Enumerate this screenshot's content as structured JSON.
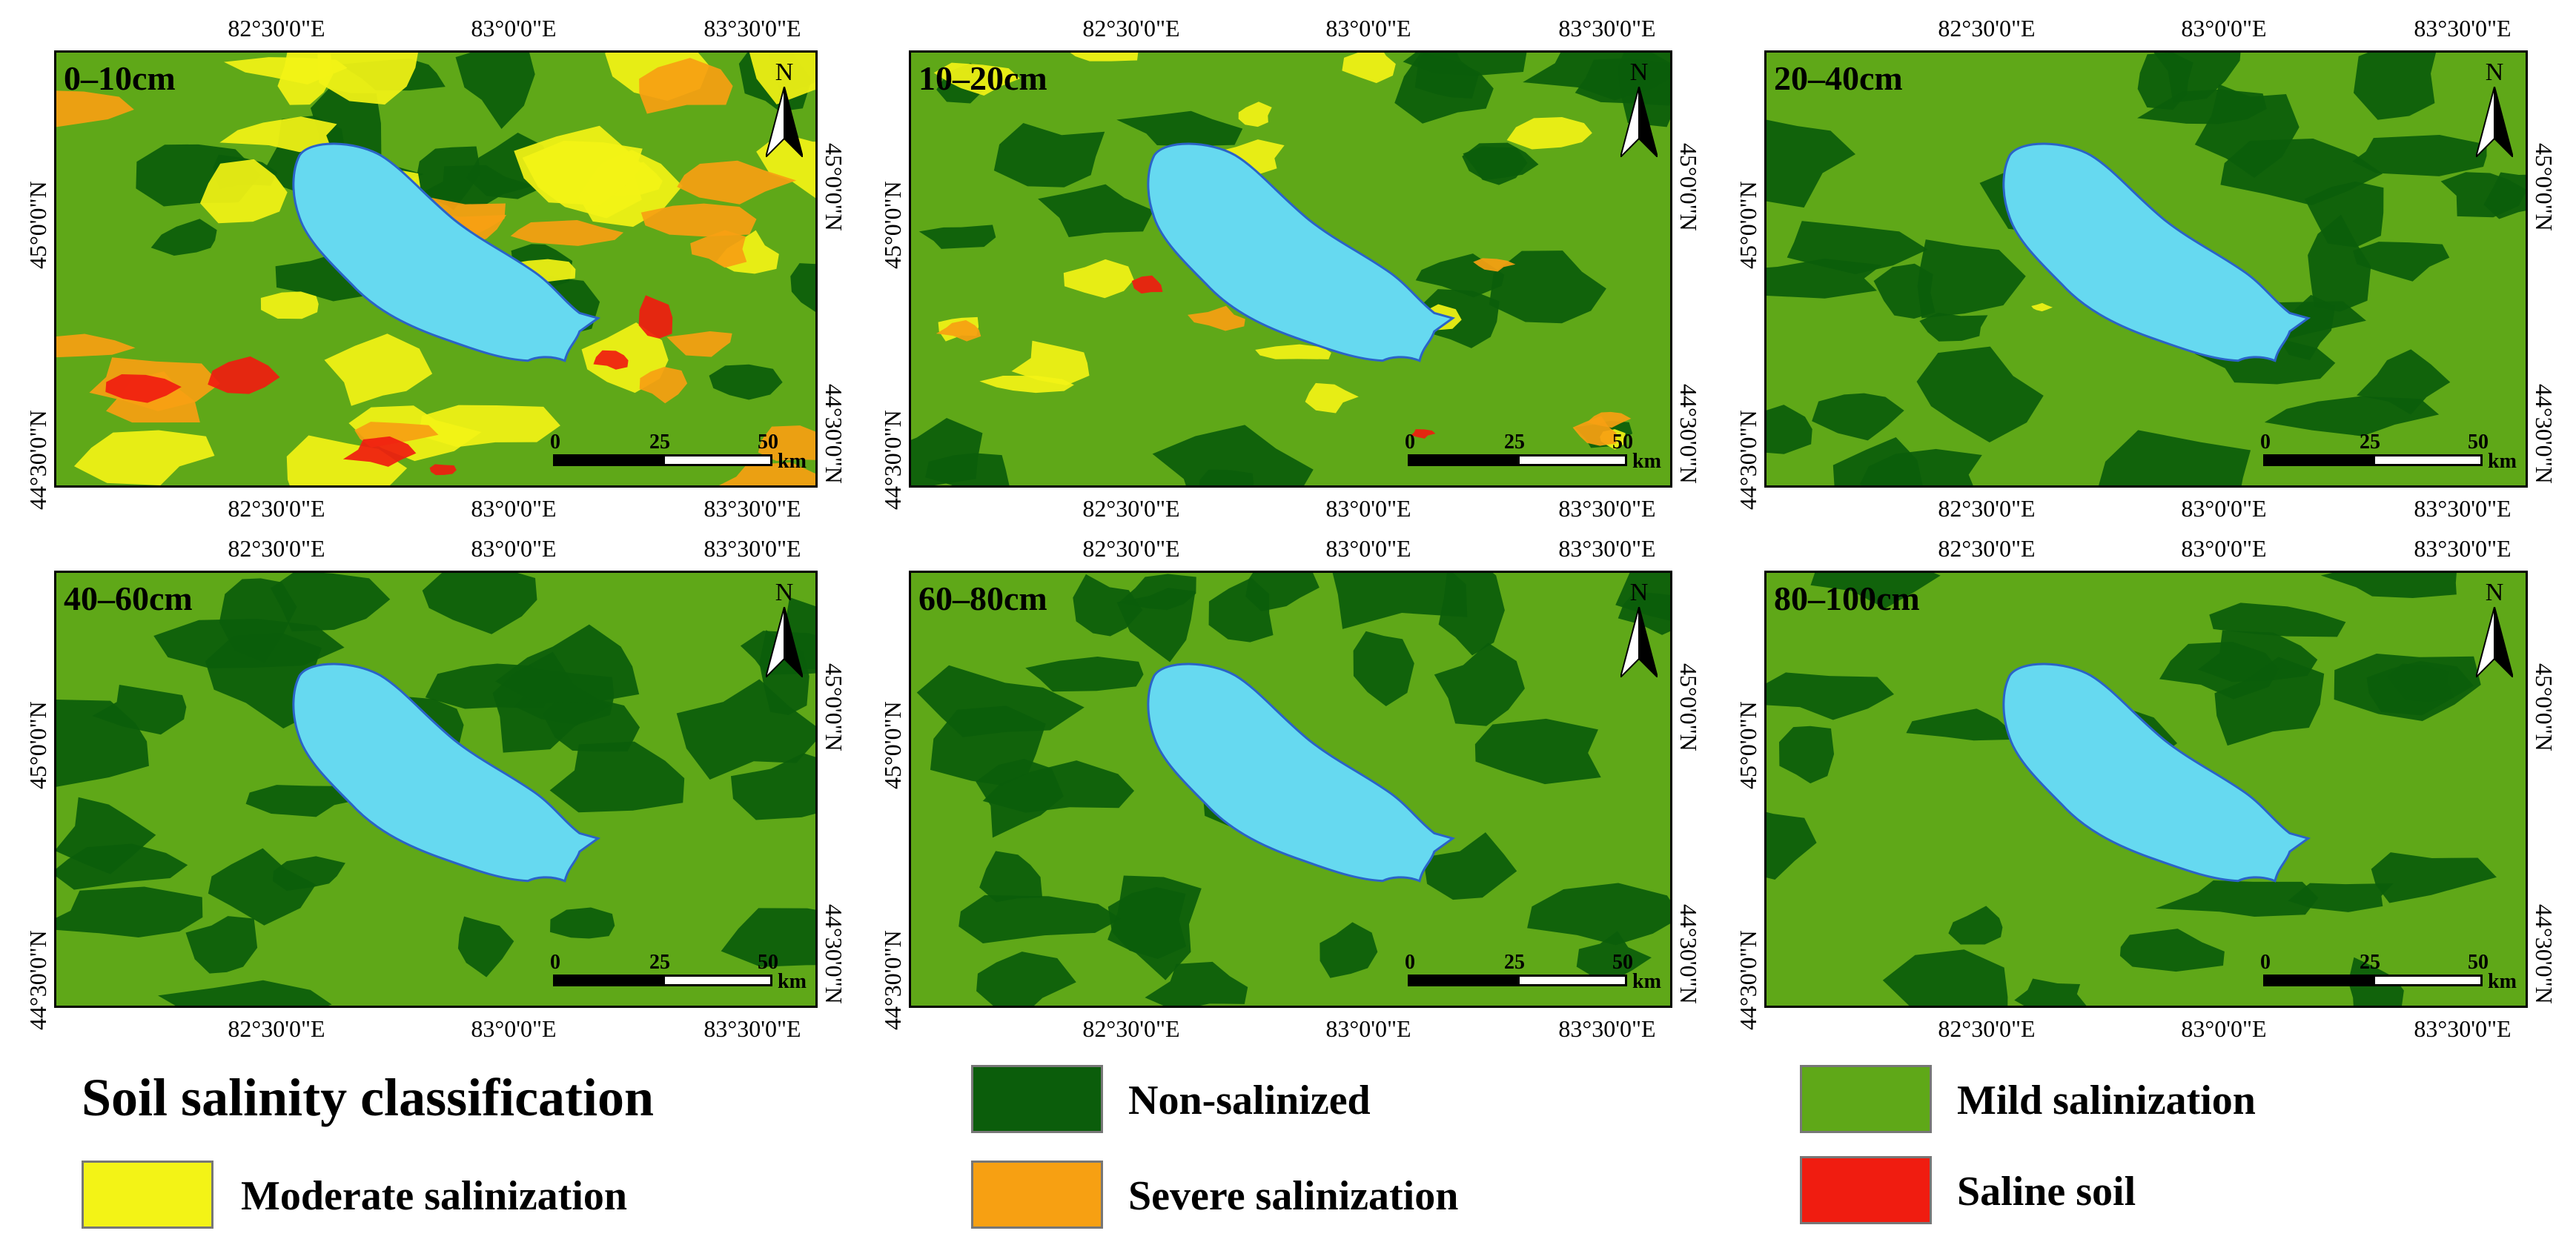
{
  "colors": {
    "non_salinized": "#0b5d0b",
    "mild": "#5fa818",
    "moderate": "#f3f316",
    "severe": "#f7a012",
    "saline": "#f01c10",
    "lake": "#66d9f0",
    "lake_edge": "#2a63c8"
  },
  "lon_labels": [
    "82°30'0\"E",
    "83°0'0\"E",
    "83°30'0\"E"
  ],
  "lat_labels": [
    "45°0'0\"N",
    "44°30'0\"N"
  ],
  "scale_bar": {
    "zero": "0",
    "mid": "25",
    "end": "50",
    "unit": "km"
  },
  "north_label": "N",
  "panels": [
    {
      "depth": "0–10cm",
      "soil_pattern": "high salinity: large yellow, orange and red areas"
    },
    {
      "depth": "10–20cm",
      "soil_pattern": "mostly mild with yellow patches"
    },
    {
      "depth": "20–40cm",
      "soil_pattern": "mild and non-salinized"
    },
    {
      "depth": "40–60cm",
      "soil_pattern": "mild and non-salinized"
    },
    {
      "depth": "60–80cm",
      "soil_pattern": "mild and non-salinized"
    },
    {
      "depth": "80–100cm",
      "soil_pattern": "mild and non-salinized"
    }
  ],
  "legend": {
    "title": "Soil salinity classification",
    "items": [
      {
        "label": "Non-salinized",
        "color": "#0b5d0b"
      },
      {
        "label": "Mild salinization",
        "color": "#5fa818"
      },
      {
        "label": "Moderate salinization",
        "color": "#f3f316"
      },
      {
        "label": "Severe salinization",
        "color": "#f7a012"
      },
      {
        "label": "Saline soil",
        "color": "#f01c10"
      }
    ]
  }
}
